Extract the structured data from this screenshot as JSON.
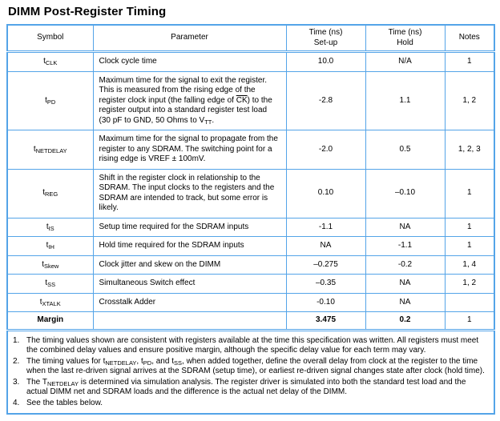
{
  "page": {
    "title": "DIMM Post-Register Timing"
  },
  "colors": {
    "table_border": "#54a4e8",
    "text": "#000000",
    "background": "#ffffff"
  },
  "table": {
    "headers": [
      {
        "id": "symbol",
        "lines": [
          "Symbol"
        ]
      },
      {
        "id": "parameter",
        "lines": [
          "Parameter"
        ]
      },
      {
        "id": "time-setup",
        "lines": [
          "Time (ns)",
          "Set-up"
        ]
      },
      {
        "id": "time-hold",
        "lines": [
          "Time (ns)",
          "Hold"
        ]
      },
      {
        "id": "notes",
        "lines": [
          "Notes"
        ]
      }
    ],
    "rows": [
      {
        "symbol": [
          {
            "t": "t"
          },
          {
            "sub": "CLK"
          }
        ],
        "parameter": [
          {
            "t": "Clock cycle time"
          }
        ],
        "setup": "10.0",
        "hold": "N/A",
        "notes": "1",
        "bold": false
      },
      {
        "symbol": [
          {
            "t": "t"
          },
          {
            "sub": "PD"
          }
        ],
        "parameter": [
          {
            "t": "Maximum time for the signal to exit the register. This is measured from the rising edge of the register clock input (the falling edge of "
          },
          {
            "ov": "CK"
          },
          {
            "t": ") to the register output into a standard register test load (30 pF to GND, 50 Ohms to V"
          },
          {
            "sub": "TT"
          },
          {
            "t": "."
          }
        ],
        "setup": "-2.8",
        "hold": "1.1",
        "notes": "1, 2",
        "bold": false
      },
      {
        "symbol": [
          {
            "t": "t"
          },
          {
            "sub": "NETDELAY"
          }
        ],
        "parameter": [
          {
            "t": "Maximum time for the signal to propagate from the register to any SDRAM. The switching point for a rising edge is VREF ± 100mV."
          }
        ],
        "setup": "-2.0",
        "hold": "0.5",
        "notes": "1, 2, 3",
        "bold": false
      },
      {
        "symbol": [
          {
            "t": "t"
          },
          {
            "sub": "REG"
          }
        ],
        "parameter": [
          {
            "t": "Shift in the register clock in relationship to the SDRAM. The input clocks to the registers and the SDRAM are intended to track, but some error is likely."
          }
        ],
        "setup": "0.10",
        "hold": "–0.10",
        "notes": "1",
        "bold": false
      },
      {
        "symbol": [
          {
            "t": "t"
          },
          {
            "sub": "IS"
          }
        ],
        "parameter": [
          {
            "t": "Setup time required for the SDRAM inputs"
          }
        ],
        "setup": "-1.1",
        "hold": "NA",
        "notes": "1",
        "bold": false
      },
      {
        "symbol": [
          {
            "t": "t"
          },
          {
            "sub": "IH"
          }
        ],
        "parameter": [
          {
            "t": "Hold time required for the SDRAM inputs"
          }
        ],
        "setup": "NA",
        "hold": "-1.1",
        "notes": "1",
        "bold": false
      },
      {
        "symbol": [
          {
            "t": "t"
          },
          {
            "sub": "Skew"
          }
        ],
        "parameter": [
          {
            "t": "Clock jitter and skew on the DIMM"
          }
        ],
        "setup": "–0.275",
        "hold": "-0.2",
        "notes": "1, 4",
        "bold": false
      },
      {
        "symbol": [
          {
            "t": "t"
          },
          {
            "sub": "SS"
          }
        ],
        "parameter": [
          {
            "t": "Simultaneous Switch effect"
          }
        ],
        "setup": "–0.35",
        "hold": "NA",
        "notes": "1, 2",
        "bold": false
      },
      {
        "symbol": [
          {
            "t": "t"
          },
          {
            "sub": "XTALK"
          }
        ],
        "parameter": [
          {
            "t": "Crosstalk Adder"
          }
        ],
        "setup": "-0.10",
        "hold": "NA",
        "notes": "",
        "bold": false
      },
      {
        "symbol": [
          {
            "t": "Margin"
          }
        ],
        "parameter": [],
        "setup": "3.475",
        "hold": "0.2",
        "notes": "1",
        "bold": true
      }
    ],
    "footnotes": [
      [
        {
          "t": "The timing values shown are consistent with registers available at the time this specification was written. All registers must meet the combined delay values and ensure positive margin, although the specific delay value for each term may vary."
        }
      ],
      [
        {
          "t": "The timing values for t"
        },
        {
          "sub": "NETDELAY"
        },
        {
          "t": ", t"
        },
        {
          "sub": "PD"
        },
        {
          "t": ", and t"
        },
        {
          "sub": "SS"
        },
        {
          "t": ", when added together, define the overall delay from clock at the register to the time when the last re-driven signal arrives at the SDRAM (setup time), or earliest re-driven signal changes state after clock (hold time)."
        }
      ],
      [
        {
          "t": "The T"
        },
        {
          "sub": "NETDELAY"
        },
        {
          "t": " is determined via simulation analysis. The register driver is simulated into both the standard test load and the actual DIMM net and SDRAM loads and the difference is the actual net delay of the DIMM."
        }
      ],
      [
        {
          "t": "See the tables below."
        }
      ]
    ]
  }
}
